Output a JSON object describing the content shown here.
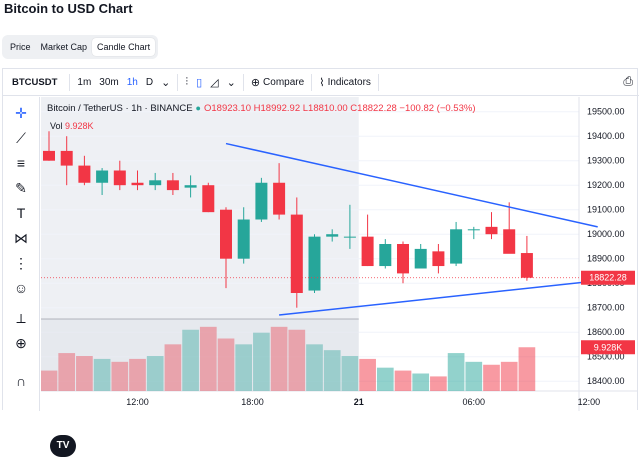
{
  "page_title": "Bitcoin to USD Chart",
  "tabs": [
    {
      "label": "Price",
      "active": false
    },
    {
      "label": "Market Cap",
      "active": false
    },
    {
      "label": "Candle Chart",
      "active": true
    }
  ],
  "toolbar": {
    "symbol": "BTCUSDT",
    "intervals": [
      "1m",
      "30m",
      "1h",
      "D"
    ],
    "active_interval": "1h",
    "compare_label": "Compare",
    "indicators_label": "Indicators"
  },
  "legend": {
    "title": "Bitcoin / TetherUS · 1h · BINANCE",
    "ohlc": "O18923.10 H18992.92 L18810.00 C18822.28 −100.82 (−0.53%)",
    "vol_label": "Vol",
    "vol_value": "9.928K"
  },
  "icons": {
    "left_tools": [
      "crosshair-icon",
      "trend-line-icon",
      "horizontal-lines-icon",
      "brush-icon",
      "text-icon",
      "pattern-icon",
      "forecast-icon",
      "smile-icon",
      "ruler-icon",
      "zoom-icon",
      "magnet-icon"
    ],
    "toolbar": [
      "bar-chart-icon",
      "candle-icon",
      "area-icon",
      "plus-circle-icon",
      "indicators-icon",
      "camera-icon"
    ]
  },
  "colors": {
    "up": "#26a69a",
    "down": "#f23645",
    "trendline": "#2962ff",
    "price_label_bg": "#f23645",
    "selection_bg": "#e0e3eb"
  },
  "chart_data": {
    "type": "candlestick",
    "symbol": "BTCUSDT",
    "interval": "1h",
    "x_tick_labels": [
      "12:00",
      "18:00",
      "21",
      "06:00",
      "12:00"
    ],
    "y_tick_labels": [
      "19500.00",
      "19400.00",
      "19300.00",
      "19200.00",
      "19100.00",
      "19000.00",
      "18900.00",
      "18800.00",
      "18700.00",
      "18600.00",
      "18500.00",
      "18400.00"
    ],
    "ylim": [
      18360,
      19560
    ],
    "candles": [
      {
        "o": 19340,
        "h": 19420,
        "l": 19300,
        "c": 19300
      },
      {
        "o": 19340,
        "h": 19400,
        "l": 19200,
        "c": 19280
      },
      {
        "o": 19280,
        "h": 19320,
        "l": 19200,
        "c": 19210
      },
      {
        "o": 19210,
        "h": 19270,
        "l": 19160,
        "c": 19260
      },
      {
        "o": 19260,
        "h": 19300,
        "l": 19180,
        "c": 19200
      },
      {
        "o": 19210,
        "h": 19260,
        "l": 19180,
        "c": 19200
      },
      {
        "o": 19200,
        "h": 19250,
        "l": 19180,
        "c": 19220
      },
      {
        "o": 19220,
        "h": 19250,
        "l": 19160,
        "c": 19180
      },
      {
        "o": 19190,
        "h": 19240,
        "l": 19150,
        "c": 19200
      },
      {
        "o": 19200,
        "h": 19210,
        "l": 19090,
        "c": 19090
      },
      {
        "o": 19100,
        "h": 19110,
        "l": 18780,
        "c": 18900
      },
      {
        "o": 18900,
        "h": 19110,
        "l": 18880,
        "c": 19060
      },
      {
        "o": 19060,
        "h": 19230,
        "l": 19050,
        "c": 19210
      },
      {
        "o": 19210,
        "h": 19290,
        "l": 19060,
        "c": 19080
      },
      {
        "o": 19080,
        "h": 19150,
        "l": 18700,
        "c": 18760
      },
      {
        "o": 18770,
        "h": 19000,
        "l": 18760,
        "c": 18990
      },
      {
        "o": 18990,
        "h": 19020,
        "l": 18970,
        "c": 19000
      },
      {
        "o": 18990,
        "h": 19120,
        "l": 18940,
        "c": 18990
      },
      {
        "o": 18990,
        "h": 19080,
        "l": 18870,
        "c": 18870
      },
      {
        "o": 18870,
        "h": 18980,
        "l": 18860,
        "c": 18960
      },
      {
        "o": 18960,
        "h": 18970,
        "l": 18800,
        "c": 18840
      },
      {
        "o": 18860,
        "h": 18960,
        "l": 18860,
        "c": 18940
      },
      {
        "o": 18930,
        "h": 18960,
        "l": 18840,
        "c": 18870
      },
      {
        "o": 18880,
        "h": 19050,
        "l": 18870,
        "c": 19020
      },
      {
        "o": 19020,
        "h": 19030,
        "l": 18980,
        "c": 19020
      },
      {
        "o": 19030,
        "h": 19090,
        "l": 18980,
        "c": 19000
      },
      {
        "o": 19020,
        "h": 19130,
        "l": 18930,
        "c": 18920
      },
      {
        "o": 18923.1,
        "h": 18992.92,
        "l": 18810.0,
        "c": 18822.28
      }
    ],
    "volume": [
      3.5,
      6.5,
      6.0,
      5.5,
      5.0,
      5.5,
      6.0,
      8.0,
      10.5,
      11.0,
      9.0,
      8.0,
      10.0,
      11.0,
      10.5,
      8.0,
      7.0,
      6.0,
      5.5,
      4.0,
      3.5,
      3.0,
      2.5,
      6.5,
      5.0,
      4.5,
      5.0,
      7.5
    ],
    "trendlines": [
      {
        "from": {
          "candle": 10,
          "price": 19370
        },
        "to": {
          "candle": 31,
          "price": 19030
        }
      },
      {
        "from": {
          "candle": 13,
          "price": 18670
        },
        "to": {
          "candle": 31,
          "price": 18810
        }
      }
    ],
    "last_price_label": "18822.28",
    "volume_label": "9.928K"
  }
}
